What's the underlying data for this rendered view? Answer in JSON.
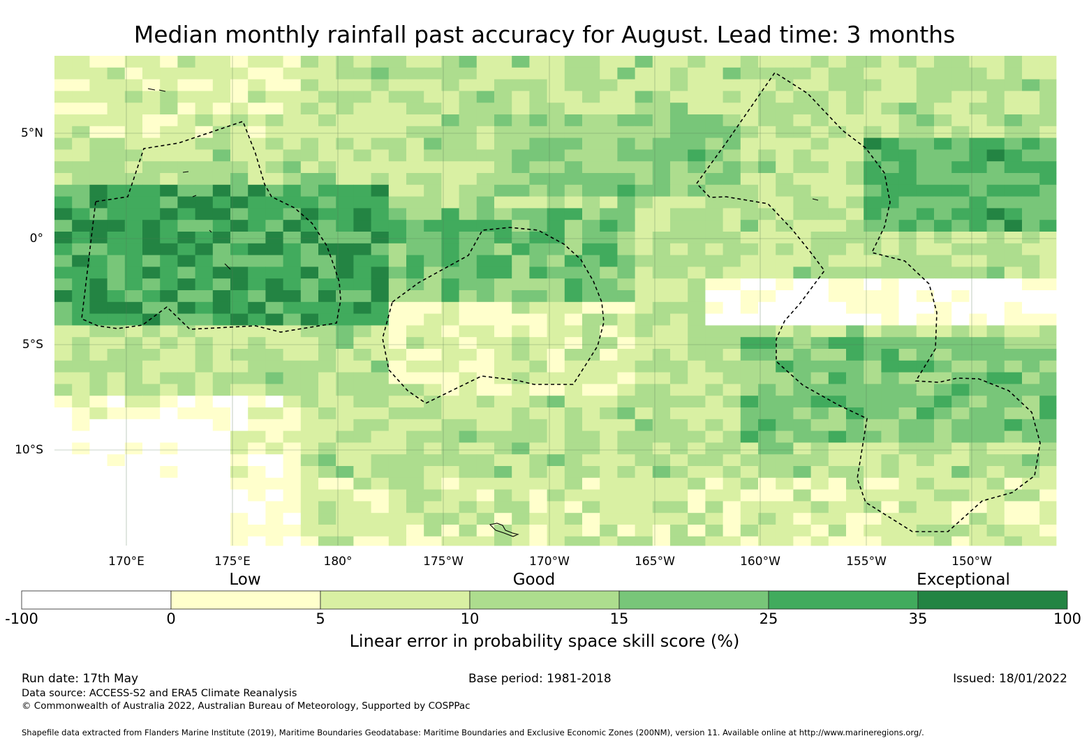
{
  "title": "Median monthly rainfall past accuracy for August. Lead time: 3 months",
  "map": {
    "lon_labels": [
      "170°E",
      "175°E",
      "180°",
      "175°W",
      "170°W",
      "165°W",
      "160°W",
      "155°W",
      "150°W"
    ],
    "lat_labels": [
      "5°N",
      "0°",
      "5°S",
      "10°S"
    ]
  },
  "legend": {
    "categories": [
      "Low",
      "Good",
      "Exceptional"
    ],
    "ticks": [
      "-100",
      "0",
      "5",
      "10",
      "15",
      "25",
      "35",
      "100"
    ],
    "colors": [
      "#ffffff",
      "#ffffcc",
      "#d9f0a3",
      "#addd8e",
      "#78c679",
      "#41ab5d",
      "#238443"
    ],
    "title": "Linear error in probability space skill score (%)"
  },
  "footer": {
    "run_date": "Run date: 17th May",
    "base_period": "Base period: 1981-2018",
    "issued": "Issued: 18/01/2022",
    "source": "Data source: ACCESS-S2 and ERA5 Climate Reanalysis",
    "copyright": "© Commonwealth of Australia 2022, Australian Bureau of Meteorology, Supported by COSPPac",
    "shapefile": "Shapefile data extracted from Flanders Marine Institute (2019), Maritime Boundaries Geodatabase: Maritime Boundaries and Exclusive Economic Zones (200NM), version 11. Available online at http://www.marineregions.org/."
  }
}
